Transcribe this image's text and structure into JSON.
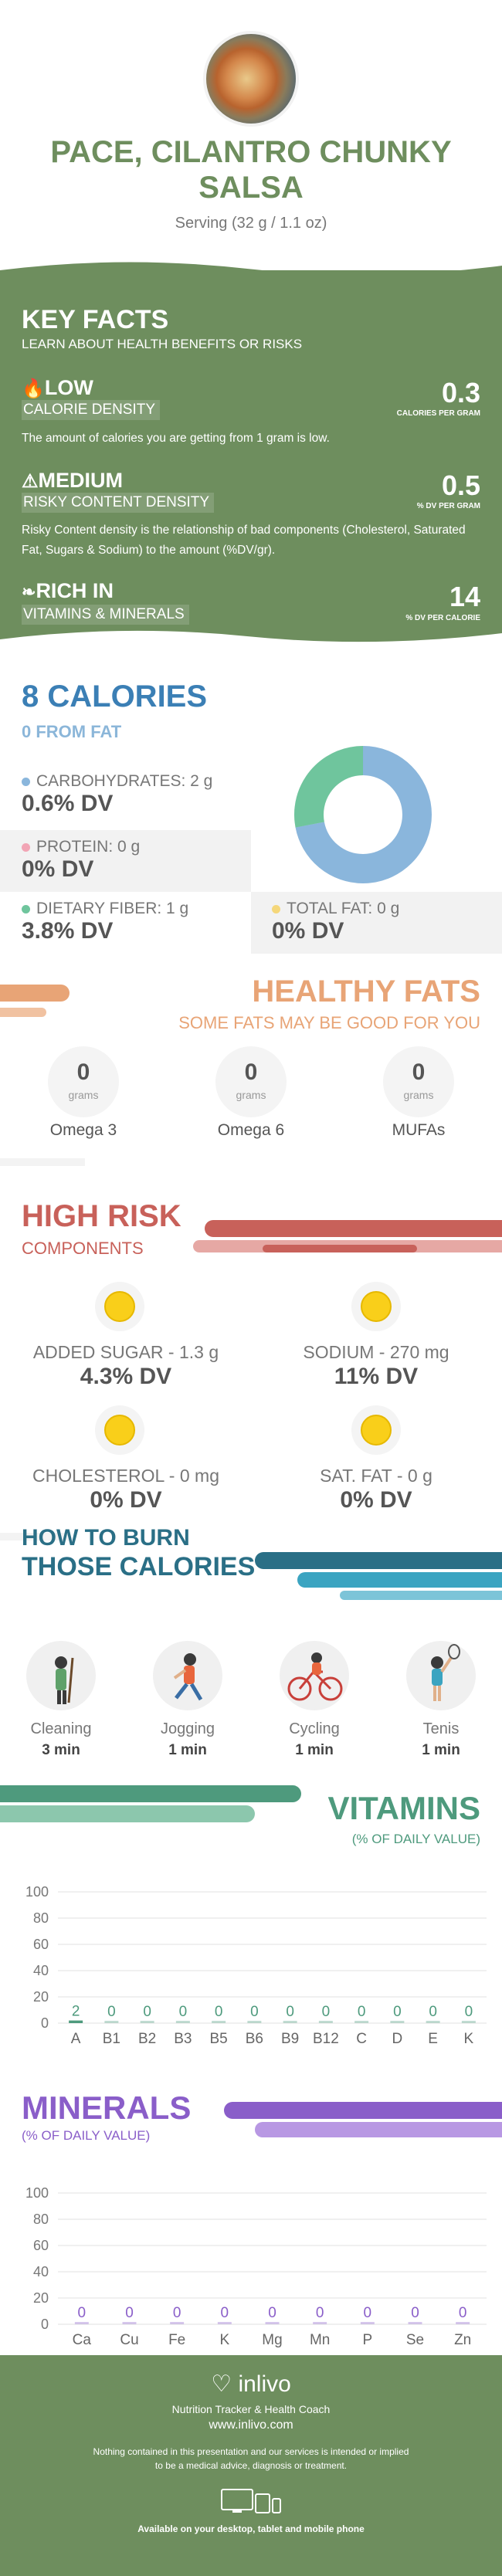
{
  "header": {
    "title_line1": "PACE, CILANTRO CHUNKY",
    "title_line2": "SALSA",
    "serving": "Serving (32 g / 1.1 oz)"
  },
  "key_facts": {
    "title": "KEY FACTS",
    "subtitle": "LEARN ABOUT HEALTH BENEFITS OR RISKS",
    "calorie_density": {
      "level": "LOW",
      "label": "CALORIE DENSITY",
      "value": "0.3",
      "unit": "CALORIES PER GRAM",
      "desc": "The amount of calories you are getting from 1 gram is low."
    },
    "risky_density": {
      "level": "MEDIUM",
      "label": "RISKY CONTENT DENSITY",
      "value": "0.5",
      "unit": "% DV PER GRAM",
      "desc": "Risky Content density is the relationship of bad components (Cholesterol, Saturated Fat, Sugars & Sodium) to the amount (%DV/gr)."
    },
    "rich_in": {
      "level": "RICH  IN",
      "label": "VITAMINS & MINERALS",
      "value": "14",
      "unit": "% DV PER CALORIE"
    }
  },
  "calories": {
    "title": "8 CALORIES",
    "subtitle": "0 FROM FAT",
    "carbs": {
      "label": "CARBOHYDRATES: 2 g",
      "dv": "0.6% DV",
      "color": "#8ab6dc"
    },
    "protein": {
      "label": "PROTEIN: 0 g",
      "dv": "0% DV",
      "color": "#f2a5b5"
    },
    "fiber": {
      "label": "DIETARY FIBER: 1 g",
      "dv": "3.8% DV",
      "color": "#6fc59d"
    },
    "fat": {
      "label": "TOTAL FAT: 0 g",
      "dv": "0% DV",
      "color": "#f5d77a"
    },
    "donut": {
      "carbs_share": 0.72,
      "fiber_share": 0.28
    }
  },
  "healthy_fats": {
    "title": "HEALTHY FATS",
    "subtitle": "SOME FATS MAY BE GOOD FOR YOU",
    "unit": "grams",
    "items": [
      {
        "value": "0",
        "label": "Omega 3"
      },
      {
        "value": "0",
        "label": "Omega 6"
      },
      {
        "value": "0",
        "label": "MUFAs"
      }
    ]
  },
  "high_risk": {
    "title": "HIGH RISK",
    "subtitle": "COMPONENTS",
    "items": [
      {
        "label": "ADDED SUGAR - 1.3 g",
        "dv": "4.3% DV"
      },
      {
        "label": "SODIUM - 270 mg",
        "dv": "11% DV"
      },
      {
        "label": "CHOLESTEROL - 0 mg",
        "dv": "0% DV"
      },
      {
        "label": "SAT. FAT - 0 g",
        "dv": "0% DV"
      }
    ]
  },
  "burn": {
    "title1": "HOW TO BURN",
    "title2": "THOSE CALORIES",
    "items": [
      {
        "label": "Cleaning",
        "time": "3 min",
        "icon": "cleaning-icon"
      },
      {
        "label": "Jogging",
        "time": "1 min",
        "icon": "jogging-icon"
      },
      {
        "label": "Cycling",
        "time": "1 min",
        "icon": "cycling-icon"
      },
      {
        "label": "Tenis",
        "time": "1 min",
        "icon": "tennis-icon"
      }
    ]
  },
  "chart_data": [
    {
      "type": "bar",
      "title": "VITAMINS",
      "subtitle": "(% OF DAILY VALUE)",
      "categories": [
        "A",
        "B1",
        "B2",
        "B3",
        "B5",
        "B6",
        "B9",
        "B12",
        "C",
        "D",
        "E",
        "K"
      ],
      "values": [
        2,
        0,
        0,
        0,
        0,
        0,
        0,
        0,
        0,
        0,
        0,
        0
      ],
      "ylim": [
        0,
        100
      ],
      "yticks": [
        0,
        20,
        40,
        60,
        80,
        100
      ],
      "color": "#4e9a7d"
    },
    {
      "type": "bar",
      "title": "MINERALS",
      "subtitle": "(% OF DAILY VALUE)",
      "categories": [
        "Ca",
        "Cu",
        "Fe",
        "K",
        "Mg",
        "Mn",
        "P",
        "Se",
        "Zn"
      ],
      "values": [
        0,
        0,
        0,
        0,
        0,
        0,
        0,
        0,
        0
      ],
      "ylim": [
        0,
        100
      ],
      "yticks": [
        0,
        20,
        40,
        60,
        80,
        100
      ],
      "color": "#8a5ec9"
    }
  ],
  "footer": {
    "brand": "inlivo",
    "tagline": "Nutrition Tracker & Health Coach",
    "url": "www.inlivo.com",
    "disclaimer1": "Nothing contained in this presentation and our services is intended or implied",
    "disclaimer2": "to be a medical advice, diagnosis or treatment.",
    "available": "Available on your desktop, tablet and mobile phone"
  }
}
